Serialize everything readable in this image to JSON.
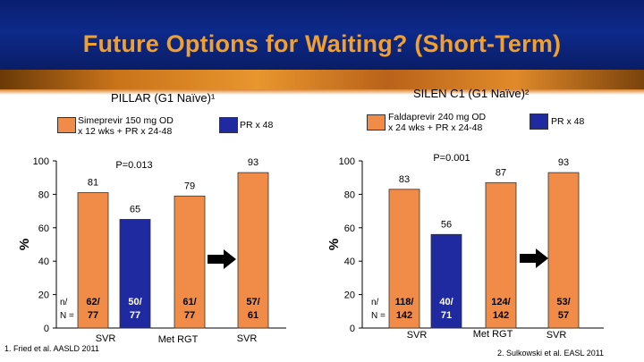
{
  "title": "Future Options for Waiting? (Short-Term)",
  "colors": {
    "orange": "#f08c48",
    "blue": "#1f2aa0",
    "header": "#0d2a8a",
    "title": "#f0a030"
  },
  "footnotes": {
    "left": "1. Fried et al. AASLD 2011",
    "right": "2. Sulkowski et al. EASL 2011"
  },
  "chart_data": [
    {
      "type": "bar",
      "title": "PILLAR (G1 Naïve)¹",
      "ylabel": "%",
      "ylim": [
        0,
        100
      ],
      "yticks": [
        0,
        20,
        40,
        60,
        80,
        100
      ],
      "legend": [
        {
          "label": "Simeprevir 150 mg OD\nx 12 wks + PR x 24-48",
          "color": "orange"
        },
        {
          "label": "PR x 48",
          "color": "blue"
        }
      ],
      "annotation": "P=0.013",
      "nn_label": "n/\nN =",
      "bars": [
        {
          "value": 81,
          "label": "81",
          "color": "orange",
          "n": "62/",
          "N": "77"
        },
        {
          "value": 65,
          "label": "65",
          "color": "blue",
          "n": "50/",
          "N": "77"
        },
        {
          "value": 79,
          "label": "79",
          "color": "orange",
          "n": "61/",
          "N": "77"
        },
        {
          "value": 93,
          "label": "93",
          "color": "orange",
          "n": "57/",
          "N": "61"
        }
      ],
      "groups": [
        "SVR",
        "Met RGT",
        "SVR"
      ]
    },
    {
      "type": "bar",
      "title": "SILEN C1 (G1 Naïve)²",
      "ylabel": "%",
      "ylim": [
        0,
        100
      ],
      "yticks": [
        0,
        20,
        40,
        60,
        80,
        100
      ],
      "legend": [
        {
          "label": "Faldaprevir 240 mg OD\nx 24 wks + PR x 24-48",
          "color": "orange"
        },
        {
          "label": "PR x 48",
          "color": "blue"
        }
      ],
      "annotation": "P=0.001",
      "nn_label": "n/\nN =",
      "bars": [
        {
          "value": 83,
          "label": "83",
          "color": "orange",
          "n": "118/",
          "N": "142"
        },
        {
          "value": 56,
          "label": "56",
          "color": "blue",
          "n": "40/",
          "N": "71"
        },
        {
          "value": 87,
          "label": "87",
          "color": "orange",
          "n": "124/",
          "N": "142"
        },
        {
          "value": 93,
          "label": "93",
          "color": "orange",
          "n": "53/",
          "N": "57"
        }
      ],
      "groups": [
        "SVR",
        "Met RGT",
        "SVR"
      ]
    }
  ]
}
